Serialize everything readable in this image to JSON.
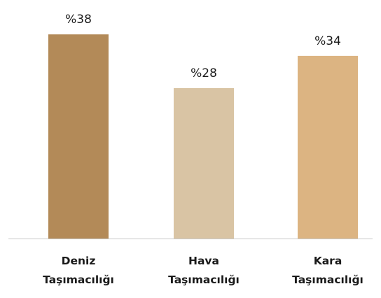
{
  "chart_data": {
    "type": "bar",
    "categories": [
      [
        "Deniz",
        "Taşımacılığı"
      ],
      [
        "Hava",
        "Taşımacılığı"
      ],
      [
        "Kara",
        "Taşımacılığı"
      ]
    ],
    "values": [
      38,
      28,
      34
    ],
    "value_labels": [
      "%38",
      "%28",
      "%34"
    ],
    "ylim": [
      0,
      40
    ],
    "title": "",
    "xlabel": "",
    "ylabel": "",
    "grid": false,
    "legend": "none",
    "colors": [
      "#b38a58",
      "#d9c4a4",
      "#dcb482"
    ],
    "axis_color": "#c8c8c8"
  }
}
